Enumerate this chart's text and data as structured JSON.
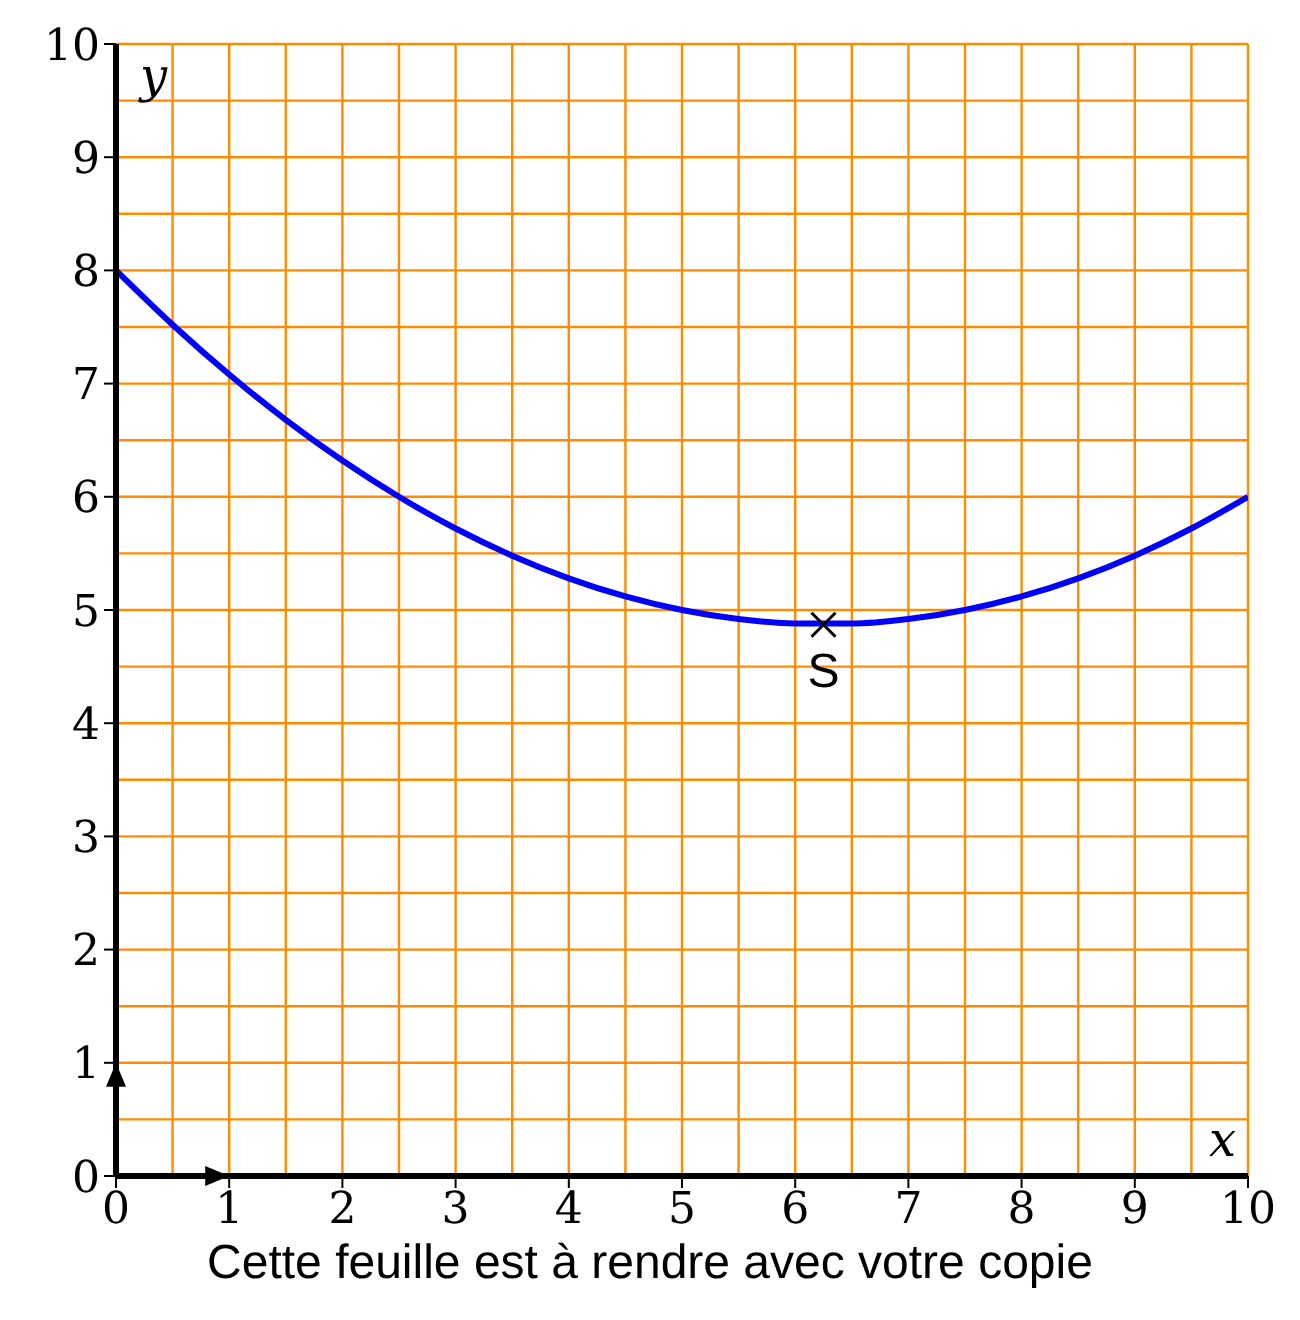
{
  "chart_data": {
    "type": "line",
    "xlabel": "x",
    "ylabel": "y",
    "xlim": [
      0,
      10
    ],
    "ylim": [
      0,
      10
    ],
    "xticks": [
      0,
      1,
      2,
      3,
      4,
      5,
      6,
      7,
      8,
      9,
      10
    ],
    "yticks": [
      0,
      1,
      2,
      3,
      4,
      5,
      6,
      7,
      8,
      9,
      10
    ],
    "grid": true,
    "legend": false,
    "series": [
      {
        "color": "#0000ff",
        "marker": "none",
        "x": [
          0,
          0.5,
          1,
          1.5,
          2,
          2.5,
          3,
          3.5,
          4,
          4.5,
          5,
          5.5,
          6,
          6.5,
          7,
          7.5,
          8,
          8.5,
          9,
          9.5,
          10
        ],
        "values": [
          8,
          7.52,
          7.08,
          6.68,
          6.32,
          6.0,
          5.72,
          5.48,
          5.28,
          5.12,
          5.0,
          4.92,
          4.88,
          4.88,
          4.92,
          5.0,
          5.12,
          5.28,
          5.48,
          5.72,
          6.0
        ]
      },
      {
        "type": "scatter",
        "color": "#000000",
        "marker": "cross",
        "x": [
          6.25
        ],
        "values": [
          4.87
        ]
      }
    ],
    "annotations": [
      {
        "text": "S",
        "x": 6.25,
        "y": 4.87
      },
      "Cette feuille est à rendre avec votre copie"
    ]
  }
}
